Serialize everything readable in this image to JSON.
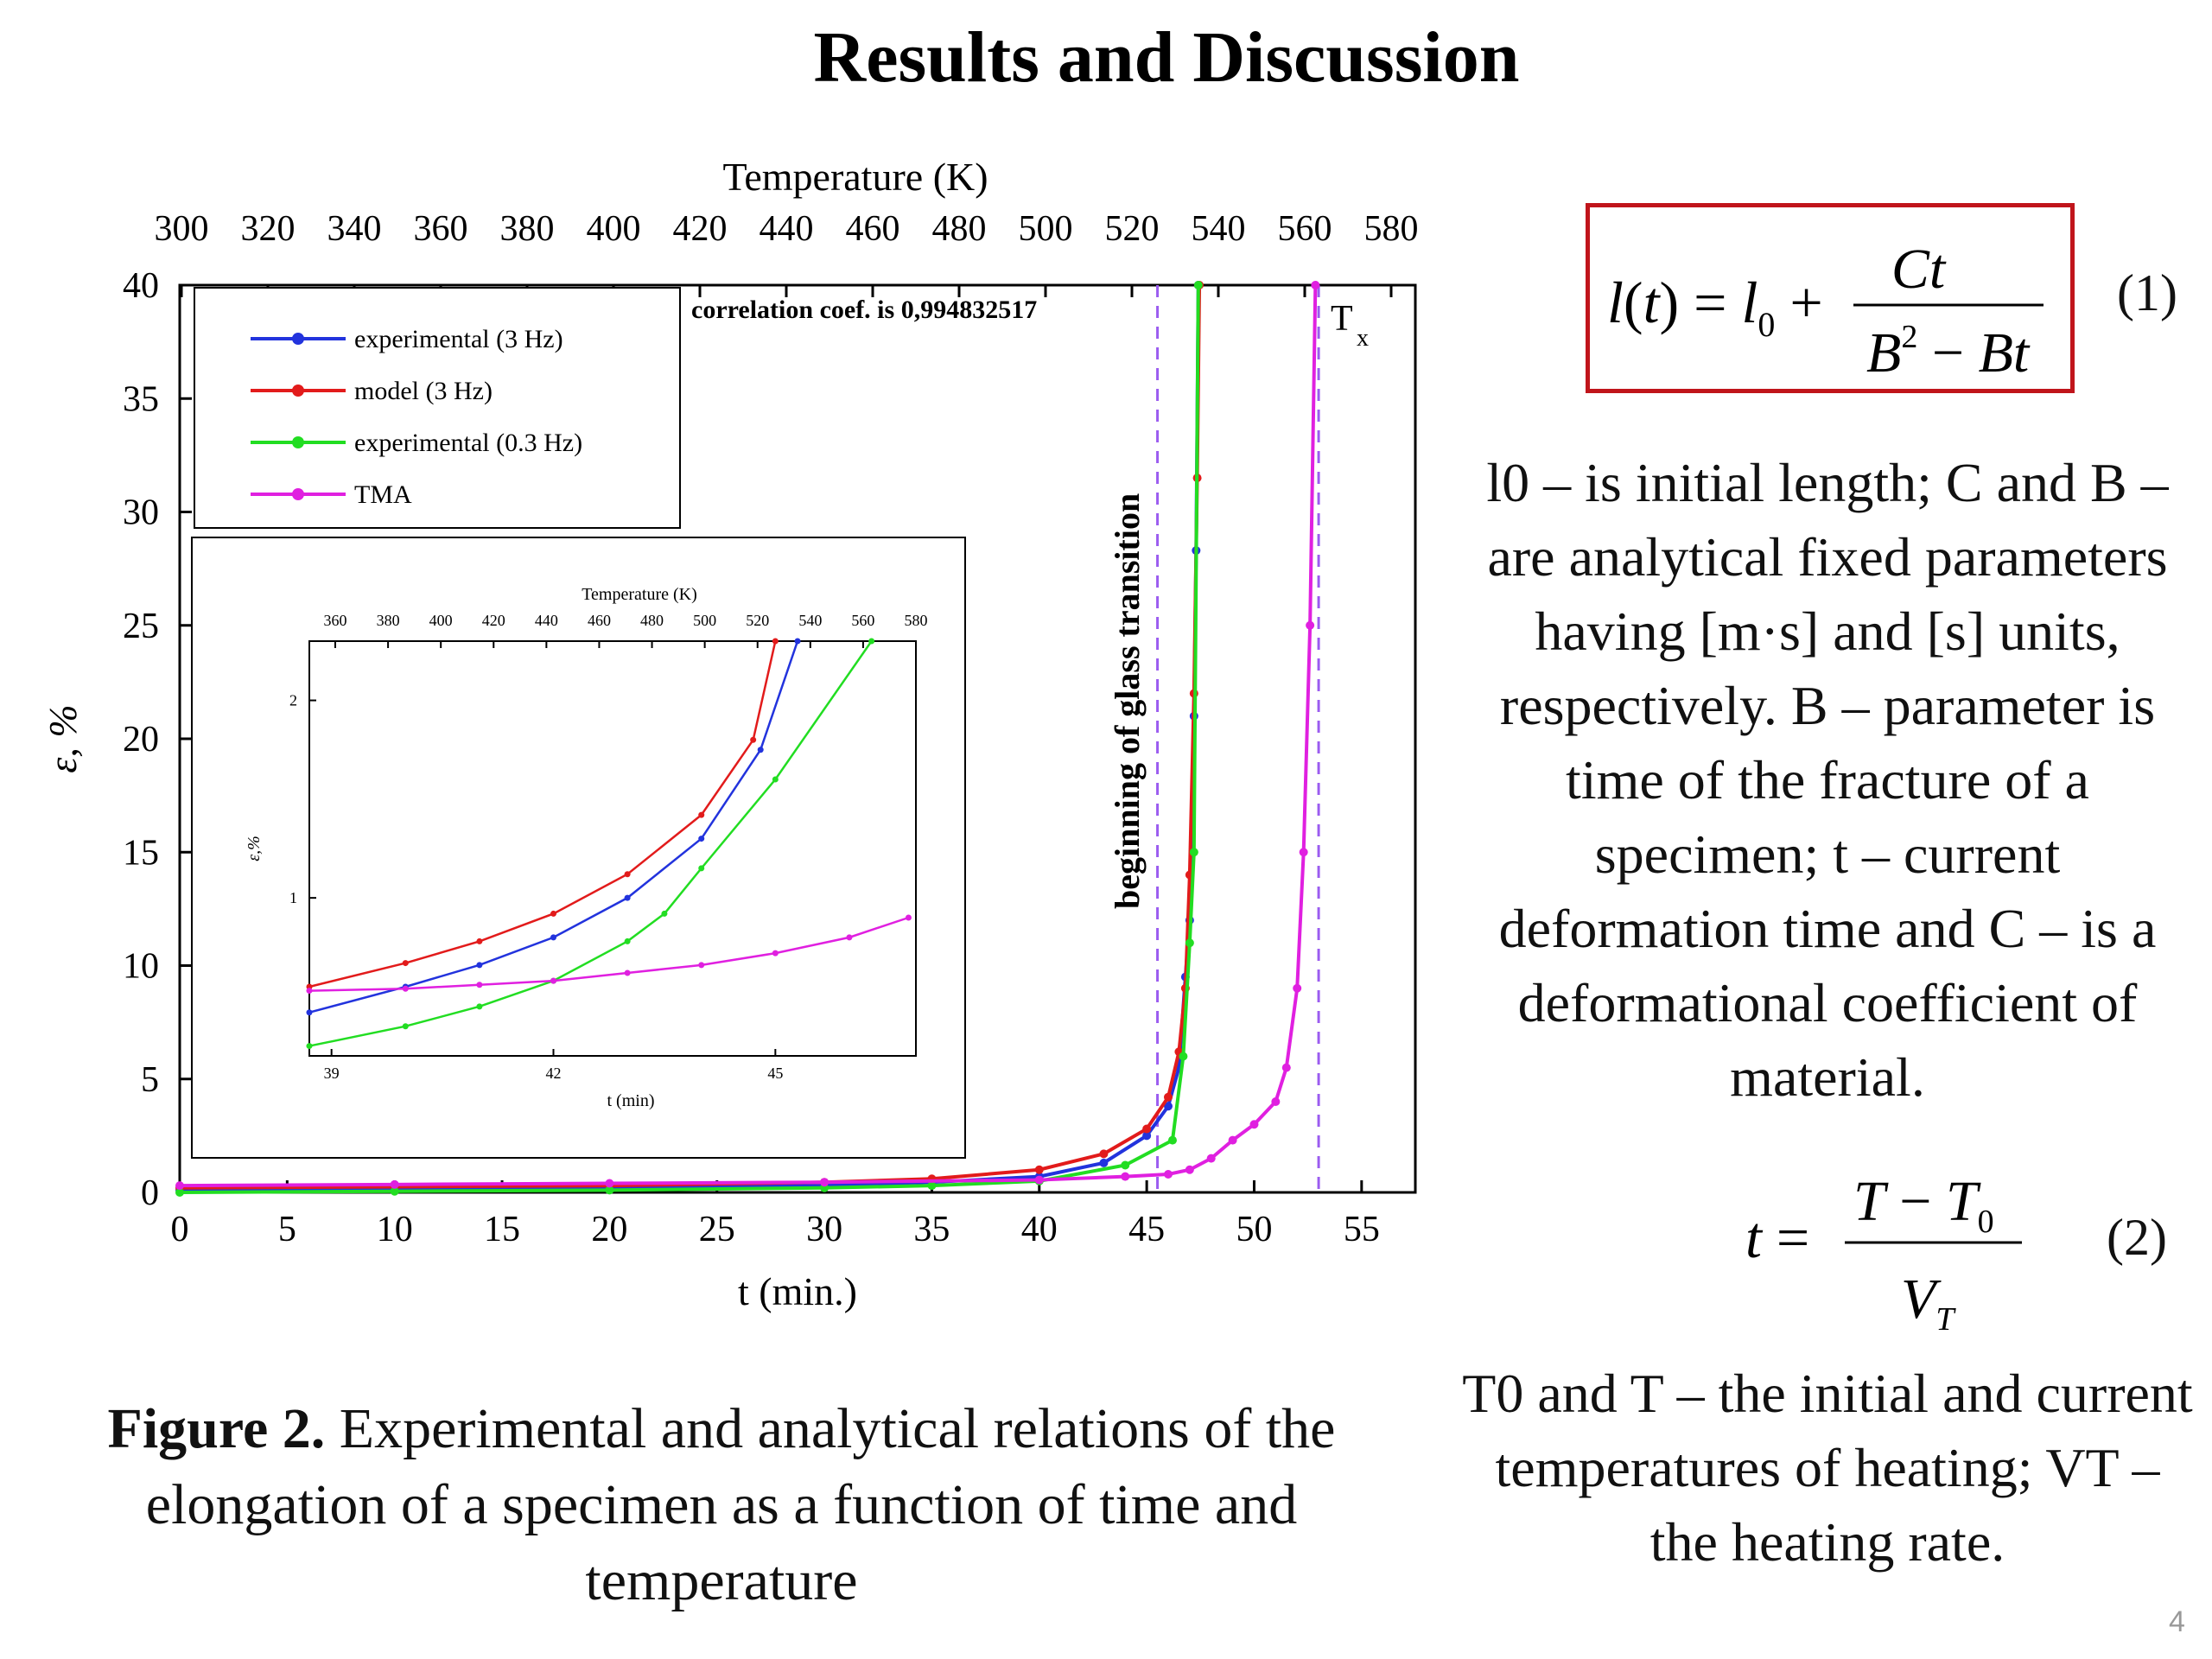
{
  "slide": {
    "title": "Results and Discussion",
    "page_number": "4"
  },
  "figure_caption": {
    "label": "Figure 2.",
    "text": "Experimental and analytical relations of the elongation of a specimen as a function of time and temperature"
  },
  "equations": {
    "eq1_number": "(1)",
    "eq2_number": "(2)"
  },
  "descriptions": {
    "eq1": "l0 – is initial length; C and B – are analytical fixed parameters having [m·s] and [s] units, respectively. B – parameter is time of the fracture of a specimen; t – current deformation time and C – is a deformational coefficient of material.",
    "eq2": "T0 and T – the initial and current temperatures of heating; VT – the heating rate."
  },
  "chart_data": {
    "type": "line",
    "xlabel": "t (min.)",
    "ylabel": "ε, %",
    "x2label": "Temperature (K)",
    "xlim": [
      0,
      57.5
    ],
    "ylim": [
      0,
      40
    ],
    "x_ticks": [
      0,
      5,
      10,
      15,
      20,
      25,
      30,
      35,
      40,
      45,
      50,
      55
    ],
    "y_ticks": [
      0,
      5,
      10,
      15,
      20,
      25,
      30,
      35,
      40
    ],
    "temperature_ticks": [
      300,
      320,
      340,
      360,
      380,
      400,
      420,
      440,
      460,
      480,
      500,
      520,
      540,
      560,
      580
    ],
    "annotation": "correlation coef. is 0,994832517",
    "vline_labels": [
      "beginning of glass transition",
      "T",
      "x"
    ],
    "vlines": [
      45.5,
      53.0
    ],
    "grid": false,
    "legend_position": "top-left",
    "series": [
      {
        "name": "experimental (3 Hz)",
        "color": "#2233dd",
        "x": [
          0,
          10,
          20,
          30,
          35,
          40,
          43,
          45,
          46,
          46.5,
          46.8,
          47.0,
          47.2,
          47.3,
          47.4
        ],
        "y": [
          0.1,
          0.15,
          0.2,
          0.3,
          0.45,
          0.7,
          1.3,
          2.5,
          3.8,
          5.5,
          9.5,
          12.0,
          21.0,
          28.3,
          40
        ]
      },
      {
        "name": "model (3 Hz)",
        "color": "#e21b1b",
        "x": [
          0,
          10,
          20,
          30,
          35,
          40,
          43,
          45,
          46,
          46.5,
          46.8,
          47.0,
          47.2,
          47.35,
          47.45
        ],
        "y": [
          0.2,
          0.25,
          0.3,
          0.45,
          0.6,
          1.0,
          1.7,
          2.8,
          4.2,
          6.2,
          9.0,
          14.0,
          22.0,
          31.5,
          40
        ]
      },
      {
        "name": "experimental (0.3 Hz)",
        "color": "#22dd22",
        "x": [
          0,
          10,
          20,
          30,
          35,
          40,
          44,
          46.2,
          46.7,
          47.0,
          47.2,
          47.4
        ],
        "y": [
          0,
          0.05,
          0.1,
          0.2,
          0.3,
          0.5,
          1.2,
          2.3,
          6.0,
          11.0,
          15.0,
          40
        ]
      },
      {
        "name": "TMA",
        "color": "#e020e0",
        "x": [
          0,
          10,
          20,
          30,
          40,
          44,
          46,
          47,
          48,
          49,
          50,
          51,
          51.5,
          52,
          52.3,
          52.6,
          52.85
        ],
        "y": [
          0.3,
          0.35,
          0.4,
          0.45,
          0.55,
          0.7,
          0.8,
          1.0,
          1.5,
          2.3,
          3.0,
          4.0,
          5.5,
          9.0,
          15.0,
          25.0,
          40
        ]
      }
    ],
    "inset": {
      "xlabel": "t (min)",
      "ylabel": "ε,%",
      "x2label": "Temperature (K)",
      "xlim": [
        38.7,
        46.9
      ],
      "ylim": [
        0.2,
        2.3
      ],
      "x_ticks": [
        39,
        42,
        45
      ],
      "y_ticks": [
        1,
        2
      ],
      "temperature_ticks": [
        360,
        380,
        400,
        420,
        440,
        460,
        480,
        500,
        520,
        540,
        560,
        580
      ],
      "series": [
        {
          "name": "model (3 Hz)",
          "color": "#e21b1b",
          "x": [
            38.7,
            40,
            41,
            42,
            43,
            44,
            44.7,
            45.0
          ],
          "y": [
            0.55,
            0.67,
            0.78,
            0.92,
            1.12,
            1.42,
            1.8,
            2.3
          ]
        },
        {
          "name": "experimental (3 Hz)",
          "color": "#2233dd",
          "x": [
            38.7,
            40,
            41,
            42,
            43,
            44,
            44.8,
            45.3
          ],
          "y": [
            0.42,
            0.55,
            0.66,
            0.8,
            1.0,
            1.3,
            1.75,
            2.3
          ]
        },
        {
          "name": "experimental (0.3 Hz)",
          "color": "#22dd22",
          "x": [
            38.7,
            40,
            41,
            42,
            43,
            43.5,
            44,
            45,
            46.3
          ],
          "y": [
            0.25,
            0.35,
            0.45,
            0.58,
            0.78,
            0.92,
            1.15,
            1.6,
            2.3
          ]
        },
        {
          "name": "TMA",
          "color": "#e020e0",
          "x": [
            38.7,
            40,
            41,
            42,
            43,
            44,
            45,
            46,
            46.8
          ],
          "y": [
            0.53,
            0.54,
            0.56,
            0.58,
            0.62,
            0.66,
            0.72,
            0.8,
            0.9
          ]
        }
      ]
    }
  }
}
